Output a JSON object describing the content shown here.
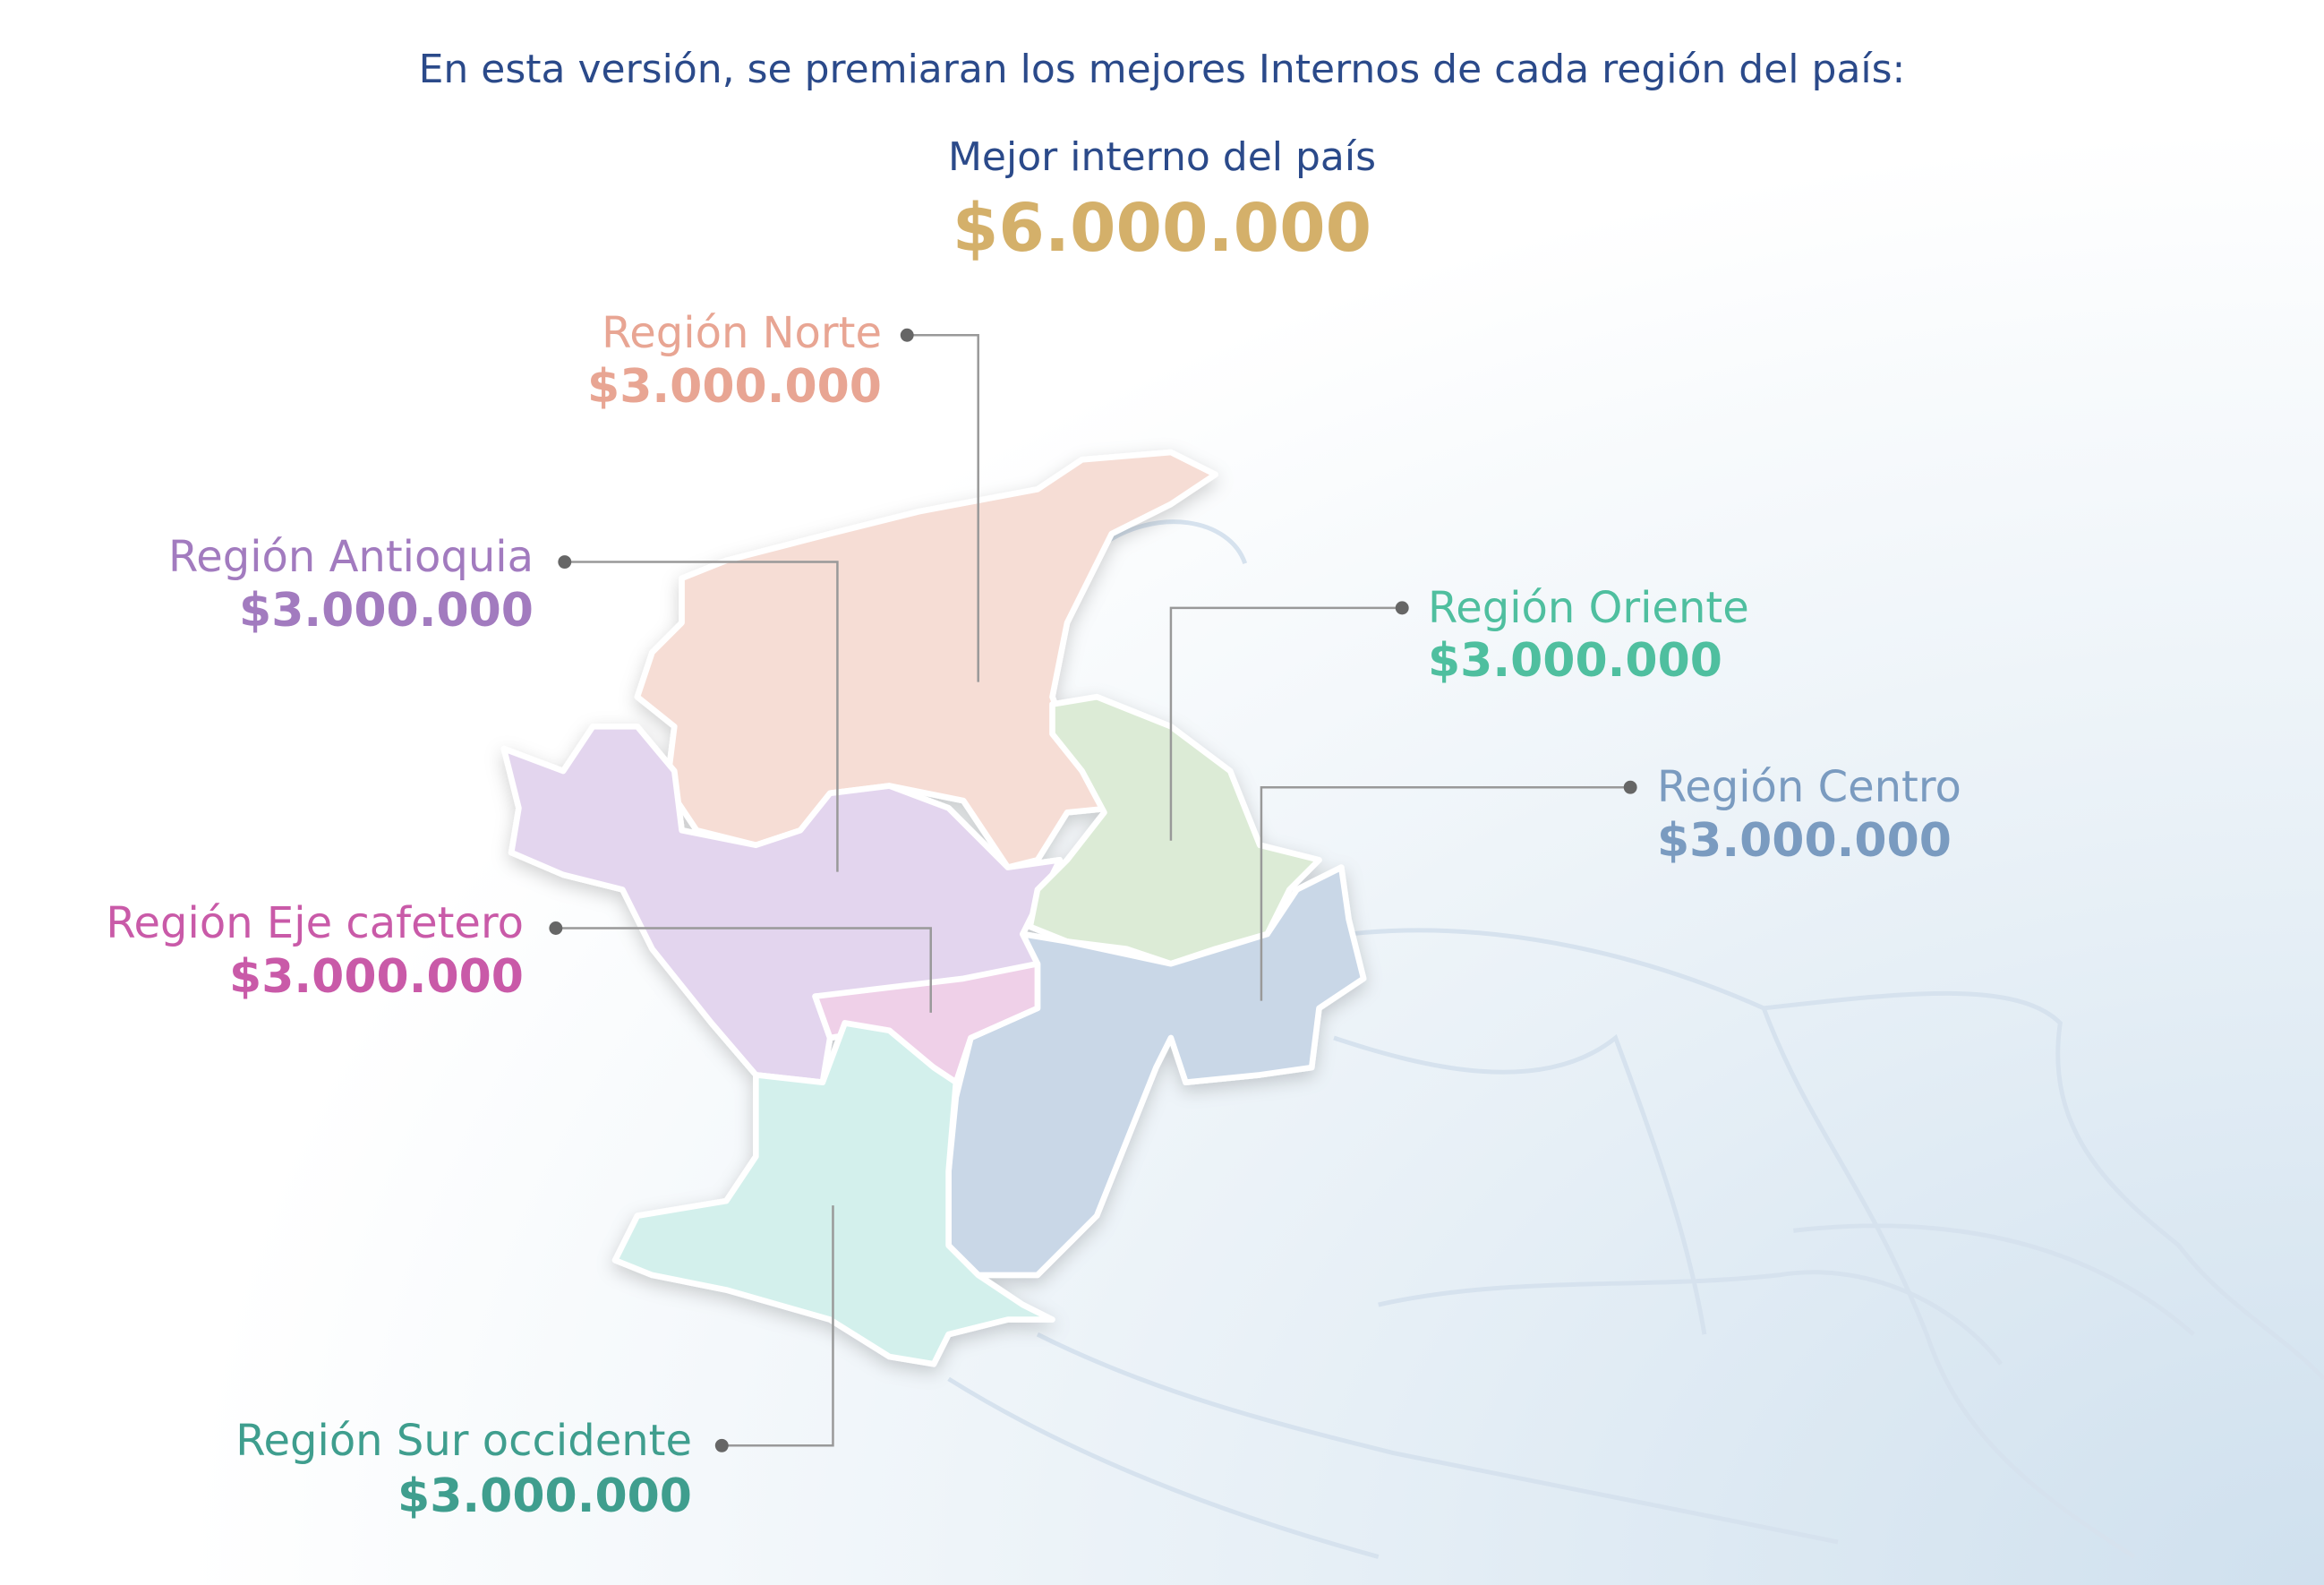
{
  "intro": "En esta versión, se premiaran los mejores Internos de cada región del país:",
  "best": {
    "label": "Mejor interno del país",
    "amount": "$6.000.000",
    "color": "#d4b06a"
  },
  "regions": [
    {
      "name": "Región Norte",
      "amount": "$3.000.000",
      "color": "#e8a593",
      "fill": "#f6ddd5"
    },
    {
      "name": "Región Antioquia",
      "amount": "$3.000.000",
      "color": "#a27bbf",
      "fill": "#e3d5ee"
    },
    {
      "name": "Región Oriente",
      "amount": "$3.000.000",
      "color": "#4fbf9f",
      "fill": "#dcebd6"
    },
    {
      "name": "Región Centro",
      "amount": "$3.000.000",
      "color": "#7a9bc0",
      "fill": "#c9d7e7"
    },
    {
      "name": "Región Eje cafetero",
      "amount": "$3.000.000",
      "color": "#c95aa8",
      "fill": "#efd0e8"
    },
    {
      "name": "Región Sur occidente",
      "amount": "$3.000.000",
      "color": "#3f9e8e",
      "fill": "#d3f0ec"
    }
  ]
}
